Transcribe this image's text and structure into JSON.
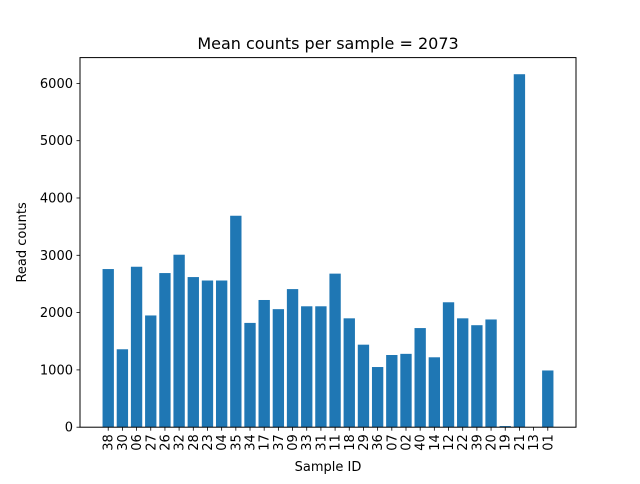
{
  "chart_data": {
    "type": "bar",
    "title": "Mean counts per sample = 2073",
    "xlabel": "Sample ID",
    "ylabel": "Read counts",
    "ylim": [
      0,
      6450
    ],
    "yticks": [
      0,
      1000,
      2000,
      3000,
      4000,
      5000,
      6000
    ],
    "grid": false,
    "bar_color": "#1f77b4",
    "categories": [
      "38",
      "30",
      "06",
      "27",
      "26",
      "32",
      "28",
      "23",
      "04",
      "35",
      "34",
      "17",
      "37",
      "09",
      "33",
      "31",
      "11",
      "18",
      "29",
      "36",
      "07",
      "02",
      "40",
      "14",
      "12",
      "22",
      "39",
      "20",
      "19",
      "21",
      "13",
      "01"
    ],
    "values": [
      2760,
      1360,
      2800,
      1950,
      2690,
      3010,
      2620,
      2560,
      2560,
      3690,
      1820,
      2220,
      2060,
      2410,
      2110,
      2110,
      2680,
      1900,
      1440,
      1050,
      1260,
      1280,
      1730,
      1220,
      2180,
      1900,
      1780,
      1880,
      20,
      6160,
      0,
      990
    ]
  }
}
